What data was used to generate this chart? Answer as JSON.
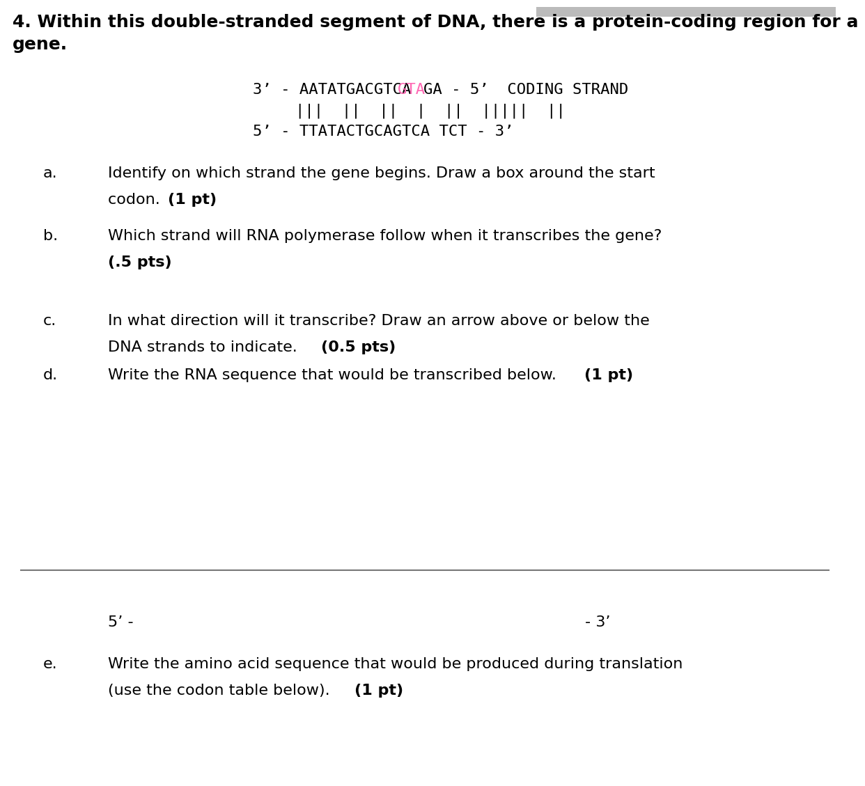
{
  "title_line1": "4. Within this double-stranded segment of DNA, there is a protein-coding region for a",
  "title_line2": "gene.",
  "strand1_pre": "3’ - AATATGACGTCA",
  "strand1_hl": "GTA",
  "strand1_suf": "GA - 5’  CODING STRAND",
  "strand_pairs": "|||  ||  ||  |  ||  |||||  ||",
  "strand2": "5’ - TTATACTGCAGTCA TCT - 3’",
  "highlight_color": "#FF69B4",
  "text_color": "#000000",
  "bg_color": "#ffffff",
  "top_bar_color": "#bbbbbb",
  "divider_color": "#777777",
  "item_a_l1": "Identify on which strand the gene begins. Draw a box around the start",
  "item_a_l2n": "codon. ",
  "item_a_l2b": "(1 pt)",
  "item_b_l1": "Which strand will RNA polymerase follow when it transcribes the gene?",
  "item_b_l2b": "(.5 pts)",
  "item_c_l1": "In what direction will it transcribe? Draw an arrow above or below the",
  "item_c_l2n": "DNA strands to indicate. ",
  "item_c_l2b": "(0.5 pts)",
  "item_d_l1n": "Write the RNA sequence that would be transcribed below. ",
  "item_d_l1b": "(1 pt)",
  "rna_left": "5’ -",
  "rna_right": "- 3’",
  "item_e_l1": "Write the amino acid sequence that would be produced during translation",
  "item_e_l2n": "(use the codon table below). ",
  "item_e_l2b": "(1 pt)"
}
